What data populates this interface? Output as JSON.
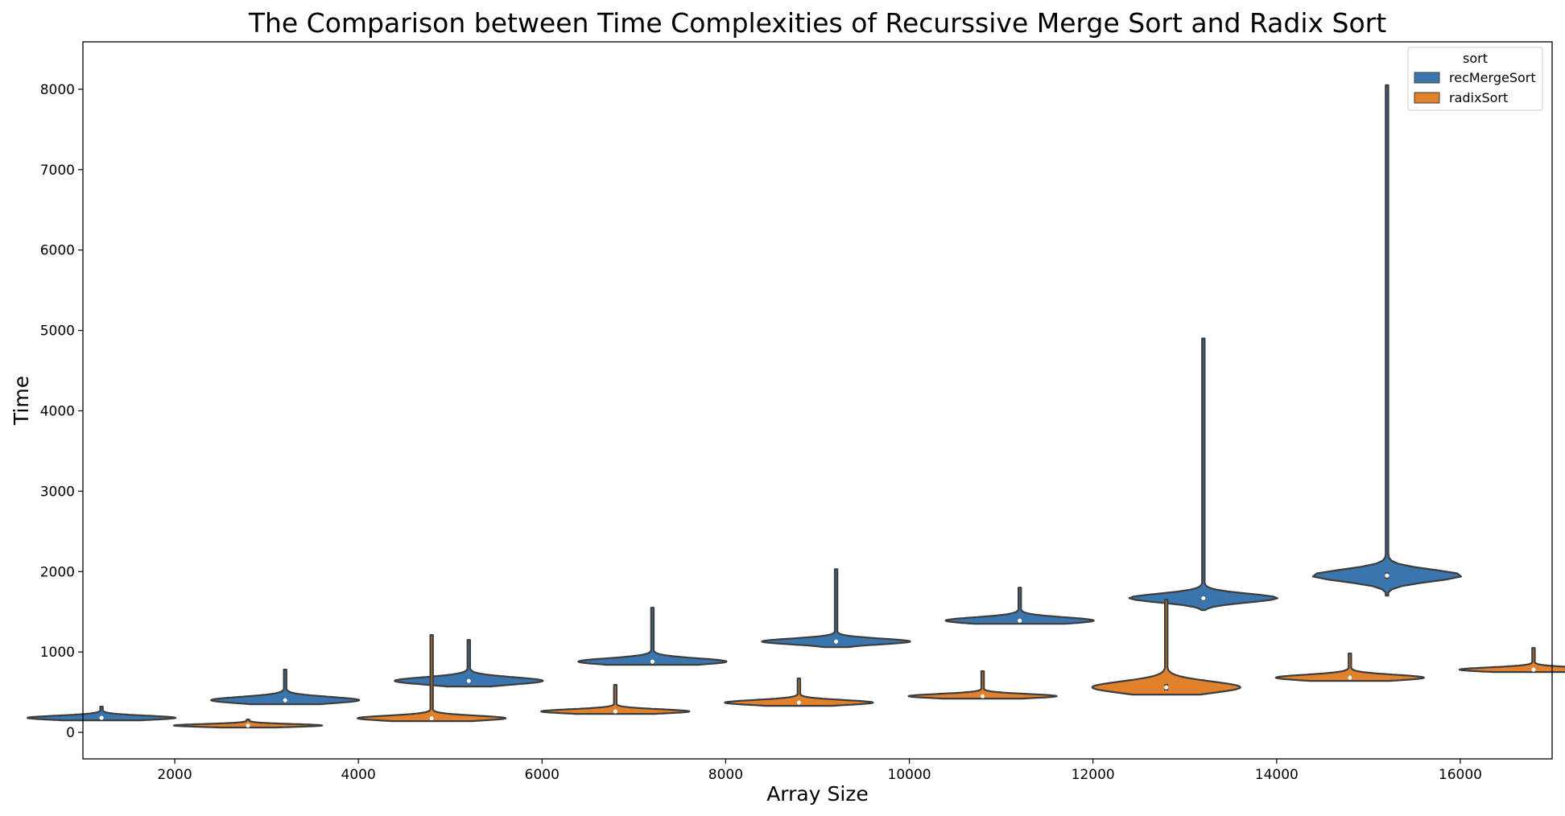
{
  "page_fragment": "(",
  "chart_data": {
    "type": "violin",
    "title": "The Comparison between Time Complexities of Recurssive Merge Sort and Radix Sort",
    "xlabel": "Array Size",
    "ylabel": "Time",
    "categories": [
      "2000",
      "4000",
      "6000",
      "8000",
      "10000",
      "12000",
      "14000",
      "16000"
    ],
    "ylim": [
      -330,
      8590
    ],
    "yticks": [
      0,
      1000,
      2000,
      3000,
      4000,
      5000,
      6000,
      7000,
      8000
    ],
    "grid": false,
    "legend": {
      "title": "sort",
      "position": "top-right"
    },
    "series": [
      {
        "name": "recMergeSort",
        "color": "#3a75ae",
        "median": [
          180,
          400,
          640,
          880,
          1130,
          1390,
          1670,
          1950
        ],
        "q1": [
          165,
          380,
          615,
          860,
          1110,
          1370,
          1640,
          1910
        ],
        "q3": [
          195,
          425,
          665,
          905,
          1150,
          1415,
          1700,
          1990
        ],
        "min": [
          150,
          350,
          570,
          840,
          1060,
          1350,
          1520,
          1700
        ],
        "max": [
          320,
          780,
          1150,
          1550,
          2030,
          1800,
          4900,
          8050
        ]
      },
      {
        "name": "radixSort",
        "color": "#e1812b",
        "median": [
          85,
          175,
          260,
          370,
          450,
          560,
          680,
          780
        ],
        "q1": [
          75,
          160,
          245,
          350,
          435,
          520,
          660,
          765
        ],
        "q3": [
          95,
          195,
          275,
          385,
          465,
          600,
          700,
          795
        ],
        "min": [
          60,
          140,
          230,
          330,
          420,
          470,
          640,
          750
        ],
        "max": [
          160,
          1210,
          590,
          670,
          760,
          1650,
          980,
          1050
        ]
      }
    ]
  }
}
